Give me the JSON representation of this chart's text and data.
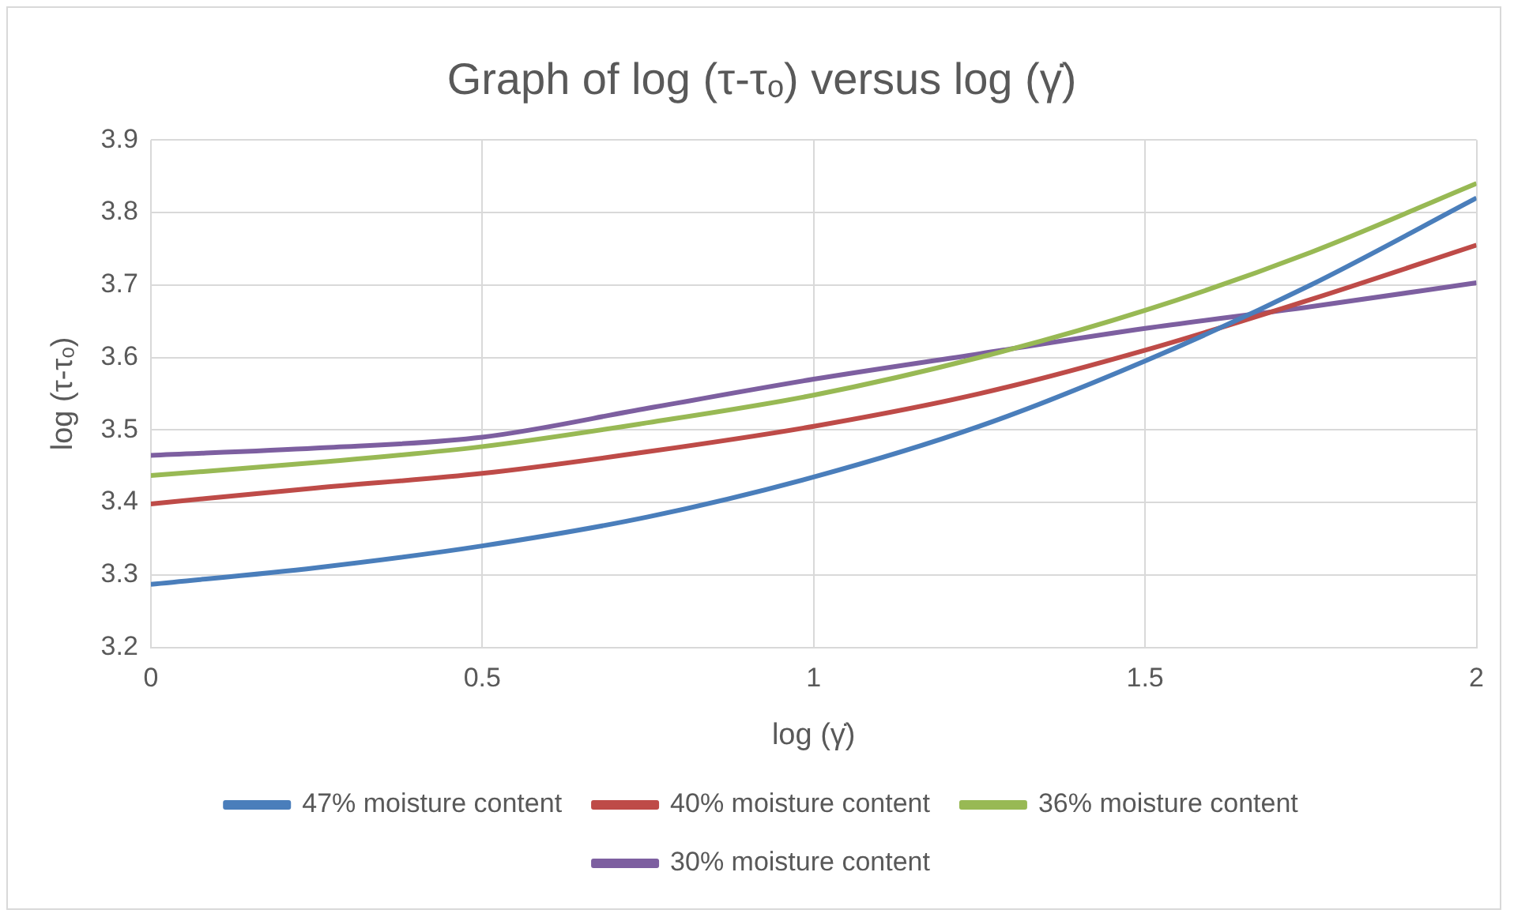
{
  "chart_data": {
    "type": "line",
    "title": "Graph of log (τ-τₒ) versus log (γ̇)",
    "xlabel": "log (γ̇)",
    "ylabel": "log (τ-τₒ)",
    "x": [
      0,
      0.25,
      0.5,
      0.75,
      1,
      1.25,
      1.5,
      1.75,
      2
    ],
    "series": [
      {
        "name": "47% moisture content",
        "color": "#4a7ebb",
        "values": [
          3.287,
          3.31,
          3.34,
          3.38,
          3.435,
          3.505,
          3.595,
          3.7,
          3.82
        ]
      },
      {
        "name": "40% moisture content",
        "color": "#be4b48",
        "values": [
          3.398,
          3.42,
          3.44,
          3.47,
          3.505,
          3.55,
          3.61,
          3.68,
          3.755
        ]
      },
      {
        "name": "36% moisture content",
        "color": "#98b954",
        "values": [
          3.437,
          3.455,
          3.477,
          3.51,
          3.548,
          3.6,
          3.665,
          3.745,
          3.84
        ]
      },
      {
        "name": "30% moisture content",
        "color": "#7d5fa0",
        "values": [
          3.465,
          3.475,
          3.49,
          3.53,
          3.57,
          3.605,
          3.64,
          3.67,
          3.703
        ]
      }
    ],
    "xlim": [
      0,
      2
    ],
    "xticks": [
      0,
      0.5,
      1,
      1.5,
      2
    ],
    "ylim": [
      3.2,
      3.9
    ],
    "yticks": [
      3.2,
      3.3,
      3.4,
      3.5,
      3.6,
      3.7,
      3.8,
      3.9
    ],
    "grid": true,
    "legend": "bottom",
    "marker": "none",
    "line_style": "solid"
  }
}
